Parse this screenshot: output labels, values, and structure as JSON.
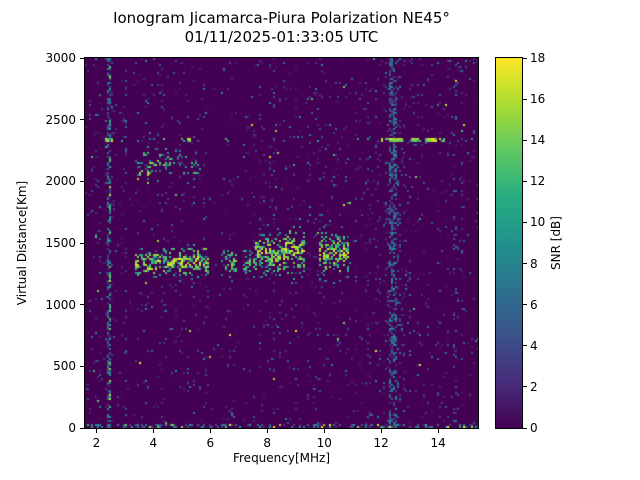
{
  "chart_data": {
    "type": "heatmap",
    "title": "Ionogram Jicamarca-Piura Polarization NE45°",
    "subtitle": "01/11/2025-01:33:05 UTC",
    "xlabel": "Frequency[MHz]",
    "ylabel": "Virtual Distance[Km]",
    "colorbar_label": "SNR [dB]",
    "x_range": [
      1.6,
      15.4
    ],
    "y_range": [
      0,
      3000
    ],
    "snr_range": [
      0,
      18
    ],
    "x_ticks": [
      2,
      4,
      6,
      8,
      10,
      12,
      14
    ],
    "y_ticks": [
      0,
      500,
      1000,
      1500,
      2000,
      2500,
      3000
    ],
    "colorbar_ticks": [
      0,
      2,
      4,
      6,
      8,
      10,
      12,
      14,
      16,
      18
    ],
    "grid": false,
    "legend": "colorbar-right",
    "colormap": {
      "name": "viridis",
      "stops": [
        {
          "t": 0,
          "c": "#440154"
        },
        {
          "t": 0.125,
          "c": "#472d7b"
        },
        {
          "t": 0.25,
          "c": "#3b528b"
        },
        {
          "t": 0.375,
          "c": "#2c728e"
        },
        {
          "t": 0.5,
          "c": "#21918c"
        },
        {
          "t": 0.625,
          "c": "#27ad81"
        },
        {
          "t": 0.75,
          "c": "#5ec962"
        },
        {
          "t": 0.875,
          "c": "#aadc32"
        },
        {
          "t": 1,
          "c": "#fde725"
        }
      ]
    },
    "features": {
      "stripe_noise": {
        "base_density": 0.05,
        "snr_cap": 8.5
      },
      "dark_columns": [
        {
          "f0": 5.95,
          "f1": 6.38,
          "factor": 0.2
        },
        {
          "f0": 6.98,
          "f1": 7.14,
          "factor": 0.3
        },
        {
          "f0": 10.9,
          "f1": 11.05,
          "factor": 0.5
        }
      ],
      "vcolumns": [
        {
          "f": 2.47,
          "hw": 0.07,
          "density": 0.45,
          "snr": [
            2,
            9
          ]
        },
        {
          "f": 2.47,
          "hw": 0.03,
          "density": 0.22,
          "snr": [
            8,
            16
          ]
        },
        {
          "f": 12.42,
          "hw": 0.12,
          "density": 0.38,
          "snr": [
            2,
            9
          ]
        },
        {
          "f": 12.42,
          "hw": 0.3,
          "density": 0.1,
          "snr": [
            2,
            8
          ]
        },
        {
          "f": 3.05,
          "hw": 0.05,
          "density": 0.14,
          "snr": [
            2,
            7
          ]
        },
        {
          "f": 13.0,
          "hw": 0.05,
          "density": 0.1,
          "snr": [
            2,
            7
          ]
        },
        {
          "f": 14.6,
          "hw": 0.05,
          "density": 0.1,
          "snr": [
            2,
            7
          ]
        }
      ],
      "echo_segments": [
        {
          "f0": 3.35,
          "f1": 4.35,
          "alt_c": 1330,
          "half": 105,
          "density": 0.62,
          "snr": [
            5,
            18
          ]
        },
        {
          "f0": 4.35,
          "f1": 5.05,
          "alt_c": 1345,
          "half": 120,
          "density": 0.66,
          "snr": [
            5,
            18
          ]
        },
        {
          "f0": 5.05,
          "f1": 5.95,
          "alt_c": 1355,
          "half": 125,
          "density": 0.6,
          "snr": [
            5,
            18
          ]
        },
        {
          "f0": 6.4,
          "f1": 6.97,
          "alt_c": 1340,
          "half": 100,
          "density": 0.5,
          "snr": [
            4,
            16
          ]
        },
        {
          "f0": 7.15,
          "f1": 7.55,
          "alt_c": 1355,
          "half": 110,
          "density": 0.45,
          "snr": [
            4,
            15
          ]
        },
        {
          "f0": 7.55,
          "f1": 8.65,
          "alt_c": 1400,
          "half": 165,
          "density": 0.6,
          "snr": [
            5,
            18
          ]
        },
        {
          "f0": 8.65,
          "f1": 9.35,
          "alt_c": 1430,
          "half": 185,
          "density": 0.55,
          "snr": [
            5,
            18
          ]
        },
        {
          "f0": 9.8,
          "f1": 10.85,
          "alt_c": 1420,
          "half": 165,
          "density": 0.62,
          "snr": [
            5,
            18
          ]
        }
      ],
      "scatter_blobs": [
        {
          "f0": 3.35,
          "f1": 4.65,
          "alt_c0": 2100,
          "alt_c1": 2160,
          "half": 130,
          "density": 0.3,
          "snr": [
            4,
            16
          ]
        },
        {
          "f0": 4.65,
          "f1": 5.7,
          "alt_c0": 2160,
          "alt_c1": 2100,
          "half": 110,
          "density": 0.2,
          "snr": [
            4,
            13
          ]
        }
      ],
      "hline": {
        "alt": 2330,
        "halfwidth": 14,
        "base_density": 0.05,
        "base_snr": [
          5,
          11
        ],
        "segments": [
          {
            "f0": 2.3,
            "f1": 2.62,
            "density": 0.5,
            "snr": [
              10,
              18
            ]
          },
          {
            "f0": 3.3,
            "f1": 3.52,
            "density": 0.3,
            "snr": [
              8,
              15
            ]
          },
          {
            "f0": 4.95,
            "f1": 5.4,
            "density": 0.45,
            "snr": [
              10,
              17
            ]
          },
          {
            "f0": 6.55,
            "f1": 6.75,
            "density": 0.25,
            "snr": [
              8,
              14
            ]
          },
          {
            "f0": 12.0,
            "f1": 12.8,
            "density": 0.8,
            "snr": [
              12,
              18
            ]
          },
          {
            "f0": 12.95,
            "f1": 13.4,
            "density": 0.65,
            "snr": [
              12,
              18
            ]
          },
          {
            "f0": 13.55,
            "f1": 14.3,
            "density": 0.6,
            "snr": [
              12,
              18
            ]
          }
        ]
      },
      "bottom_band": {
        "alt_max": 35,
        "density": 0.3,
        "snr": [
          2,
          10
        ],
        "bright_density": 0.05,
        "bright_snr": [
          12,
          18
        ]
      },
      "outliers": {
        "density": 0.0015,
        "snr": [
          11,
          18
        ]
      }
    }
  }
}
